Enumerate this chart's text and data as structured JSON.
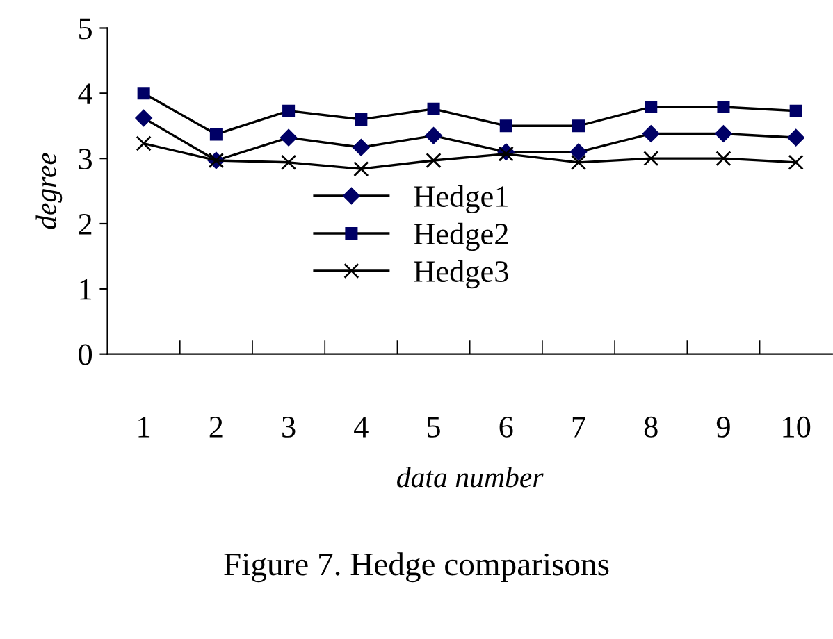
{
  "chart_data": {
    "type": "line",
    "title": "Figure 7. Hedge comparisons",
    "xlabel": "data number",
    "ylabel": "degree",
    "categories": [
      "1",
      "2",
      "3",
      "4",
      "5",
      "6",
      "7",
      "8",
      "9",
      "10"
    ],
    "series": [
      {
        "name": "Hedge1",
        "color": "#000066",
        "marker": "diamond",
        "values": [
          3.62,
          2.97,
          3.32,
          3.17,
          3.35,
          3.1,
          3.1,
          3.38,
          3.38,
          3.32
        ]
      },
      {
        "name": "Hedge2",
        "color": "#000066",
        "marker": "square",
        "values": [
          4.0,
          3.37,
          3.73,
          3.6,
          3.76,
          3.5,
          3.5,
          3.79,
          3.79,
          3.73
        ]
      },
      {
        "name": "Hedge3",
        "color": "#000000",
        "marker": "cross",
        "values": [
          3.23,
          2.97,
          2.94,
          2.84,
          2.97,
          3.07,
          2.94,
          3.0,
          3.0,
          2.94
        ]
      }
    ],
    "ylim": [
      0,
      5
    ],
    "yticks": [
      0,
      1,
      2,
      3,
      4,
      5
    ],
    "grid": false,
    "legend": "center",
    "line_style": "solid"
  }
}
